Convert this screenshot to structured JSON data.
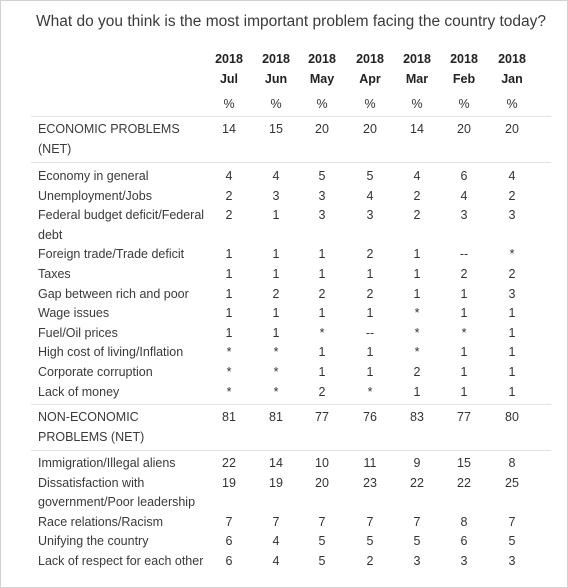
{
  "question": "What do you think is the most important problem facing the country today?",
  "columns": [
    {
      "year": "2018",
      "month": "Jul",
      "unit": "%"
    },
    {
      "year": "2018",
      "month": "Jun",
      "unit": "%"
    },
    {
      "year": "2018",
      "month": "May",
      "unit": "%"
    },
    {
      "year": "2018",
      "month": "Apr",
      "unit": "%"
    },
    {
      "year": "2018",
      "month": "Mar",
      "unit": "%"
    },
    {
      "year": "2018",
      "month": "Feb",
      "unit": "%"
    },
    {
      "year": "2018",
      "month": "Jan",
      "unit": "%"
    }
  ],
  "groups": [
    {
      "rows": [
        {
          "label": "ECONOMIC PROBLEMS (NET)",
          "values": [
            "14",
            "15",
            "20",
            "20",
            "14",
            "20",
            "20"
          ]
        }
      ]
    },
    {
      "rows": [
        {
          "label": "Economy in general",
          "values": [
            "4",
            "4",
            "5",
            "5",
            "4",
            "6",
            "4"
          ]
        },
        {
          "label": "Unemployment/Jobs",
          "values": [
            "2",
            "3",
            "3",
            "4",
            "2",
            "4",
            "2"
          ]
        },
        {
          "label": "Federal budget deficit/Federal debt",
          "values": [
            "2",
            "1",
            "3",
            "3",
            "2",
            "3",
            "3"
          ]
        },
        {
          "label": "Foreign trade/Trade deficit",
          "values": [
            "1",
            "1",
            "1",
            "2",
            "1",
            "--",
            "*"
          ]
        },
        {
          "label": "Taxes",
          "values": [
            "1",
            "1",
            "1",
            "1",
            "1",
            "2",
            "2"
          ]
        },
        {
          "label": "Gap between rich and poor",
          "values": [
            "1",
            "2",
            "2",
            "2",
            "1",
            "1",
            "3"
          ]
        },
        {
          "label": "Wage issues",
          "values": [
            "1",
            "1",
            "1",
            "1",
            "*",
            "1",
            "1"
          ]
        },
        {
          "label": "Fuel/Oil prices",
          "values": [
            "1",
            "1",
            "*",
            "--",
            "*",
            "*",
            "1"
          ]
        },
        {
          "label": "High cost of living/Inflation",
          "values": [
            "*",
            "*",
            "1",
            "1",
            "*",
            "1",
            "1"
          ]
        },
        {
          "label": "Corporate corruption",
          "values": [
            "*",
            "*",
            "1",
            "1",
            "2",
            "1",
            "1"
          ]
        },
        {
          "label": "Lack of money",
          "values": [
            "*",
            "*",
            "2",
            "*",
            "1",
            "1",
            "1"
          ]
        }
      ]
    },
    {
      "rows": [
        {
          "label": "NON-ECONOMIC PROBLEMS (NET)",
          "values": [
            "81",
            "81",
            "77",
            "76",
            "83",
            "77",
            "80"
          ]
        }
      ]
    },
    {
      "rows": [
        {
          "label": "Immigration/Illegal aliens",
          "values": [
            "22",
            "14",
            "10",
            "11",
            "9",
            "15",
            "8"
          ]
        },
        {
          "label": "Dissatisfaction with government/Poor leadership",
          "values": [
            "19",
            "19",
            "20",
            "23",
            "22",
            "22",
            "25"
          ]
        },
        {
          "label": "Race relations/Racism",
          "values": [
            "7",
            "7",
            "7",
            "7",
            "7",
            "8",
            "7"
          ]
        },
        {
          "label": "Unifying the country",
          "values": [
            "6",
            "4",
            "5",
            "5",
            "5",
            "6",
            "5"
          ]
        },
        {
          "label": "Lack of respect for each other",
          "values": [
            "6",
            "4",
            "5",
            "2",
            "3",
            "3",
            "3"
          ]
        }
      ]
    }
  ]
}
